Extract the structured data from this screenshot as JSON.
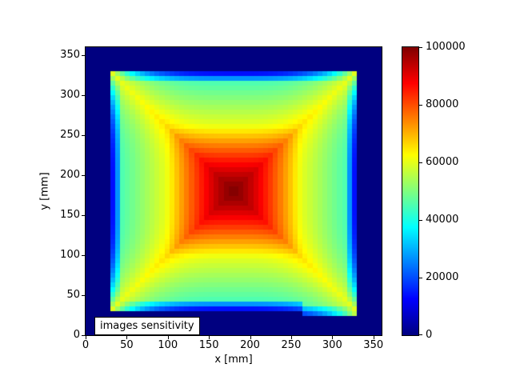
{
  "colors": {
    "background": "#ffffff",
    "text": "#000000",
    "axis": "#000000",
    "annotation_bg": "#ffffff",
    "annotation_border": "#000000"
  },
  "chart_data": {
    "type": "heatmap",
    "title": "",
    "xlabel": "x [mm]",
    "ylabel": "y [mm]",
    "annotation": "images sensitivity",
    "x_range": [
      0,
      360
    ],
    "y_range": [
      0,
      360
    ],
    "x_ticks": [
      0,
      50,
      100,
      150,
      200,
      250,
      300,
      350
    ],
    "y_ticks": [
      0,
      50,
      100,
      150,
      200,
      250,
      300,
      350
    ],
    "colormap": "jet",
    "vmin": 0,
    "vmax": 100000,
    "colorbar_ticks": [
      0,
      20000,
      40000,
      60000,
      80000,
      100000
    ],
    "legend": "none",
    "grid": false,
    "field": {
      "note": "sensitivity map read from colors: square support, peak at centre, concentric square contours, bright diagonal ridges running into the four corners, thin blue attenuated rows along the support edges, dark-blue zero background",
      "bin_mm": 6,
      "support_mm": {
        "x": [
          30,
          330
        ],
        "y": [
          30,
          330
        ]
      },
      "bottom_step": {
        "x_mm": [
          264,
          330
        ],
        "bottom_mm": 24
      },
      "center_mm": [
        180,
        180
      ],
      "half_size_mm": 150,
      "peak": 100000,
      "knee_value": 60000,
      "knee_radius_frac": 0.55,
      "center_falloff_exp": 1.3,
      "edge_mid_value": 41000,
      "corner_base_value": 37500,
      "ridge_amplitude": 22000,
      "outside_value": 0,
      "edge_rows_attenuation": [
        0.33,
        0.62
      ],
      "sample_profile_y180": {
        "x_mm": [
          33,
          60,
          90,
          120,
          150,
          180,
          210,
          240,
          270,
          300,
          327
        ],
        "value": [
          13800,
          49400,
          57900,
          73600,
          89300,
          99900,
          89300,
          73600,
          57900,
          49400,
          13800
        ]
      }
    }
  }
}
